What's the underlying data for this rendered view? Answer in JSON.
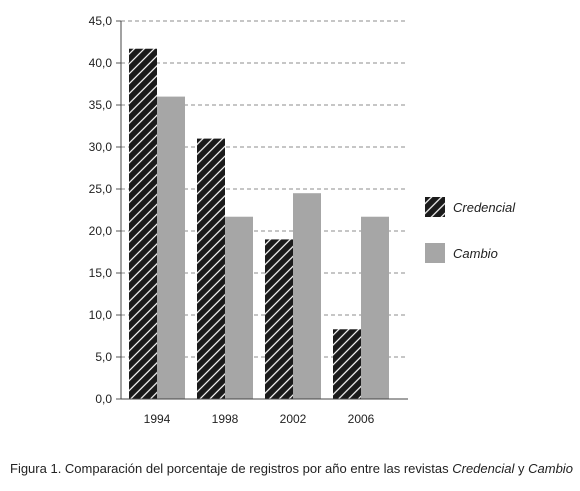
{
  "chart_data": {
    "type": "bar",
    "categories": [
      "1994",
      "1998",
      "2002",
      "2006"
    ],
    "series": [
      {
        "name": "Credencial",
        "values": [
          41.7,
          31.0,
          19.0,
          8.3
        ],
        "color": "#1a1a1a",
        "pattern": "diagonal-hatch"
      },
      {
        "name": "Cambio",
        "values": [
          36.0,
          21.7,
          24.5,
          21.7
        ],
        "color": "#a6a6a6",
        "pattern": "solid"
      }
    ],
    "ylim": [
      0,
      45
    ],
    "yticks": [
      "0,0",
      "5,0",
      "10,0",
      "15,0",
      "20,0",
      "25,0",
      "30,0",
      "35,0",
      "40,0",
      "45,0"
    ],
    "ytick_values": [
      0,
      5,
      10,
      15,
      20,
      25,
      30,
      35,
      40,
      45
    ],
    "grid": "horizontal-dashed",
    "legend_placement": "right",
    "title": "",
    "xlabel": "",
    "ylabel": ""
  },
  "caption": {
    "prefix": "Figura 1. Comparación del porcentaje de registros por año entre las revistas ",
    "journal_a": "Credencial",
    "connector": " y ",
    "journal_b": "Cambio"
  }
}
